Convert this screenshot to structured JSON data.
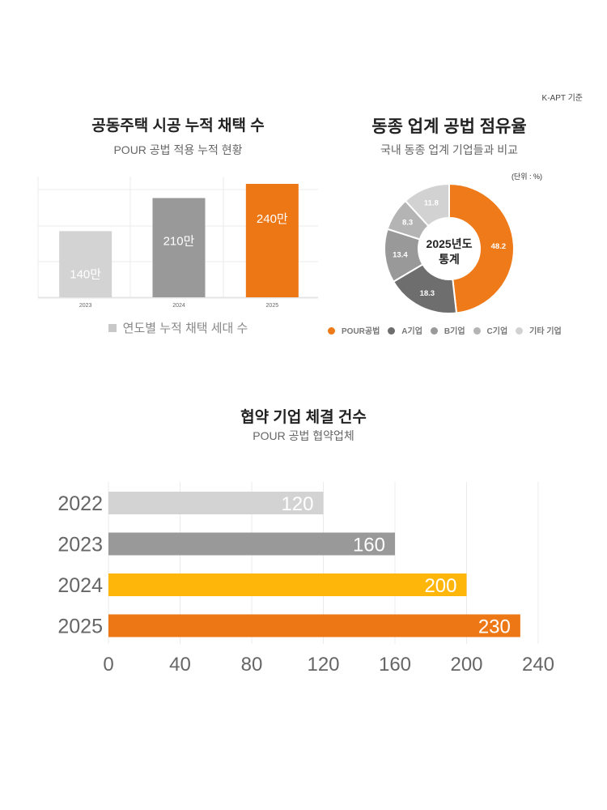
{
  "source_note": "K-APT 기준",
  "chart_data": [
    {
      "type": "bar",
      "title": "공동주택 시공 누적 채택 수",
      "subtitle": "POUR 공법 적용 누적 현황",
      "categories": [
        "2023",
        "2024",
        "2025"
      ],
      "values": [
        140,
        210,
        240
      ],
      "data_labels": [
        "140만",
        "210만",
        "240만"
      ],
      "colors": [
        "#d3d3d3",
        "#999999",
        "#ee7715"
      ],
      "legend": [
        {
          "label": "연도별 누적 채택 세대 수",
          "color": "#c8c8c8"
        }
      ],
      "legend_position": "bottom",
      "unit": "만 세대",
      "ylim": [
        0,
        255
      ],
      "grid": true
    },
    {
      "type": "pie",
      "title": "동종 업계 공법 점유율",
      "subtitle": "국내 동종 업계 기업들과 비교",
      "unit_label": "(단위 : %)",
      "center_label": [
        "2025년도",
        "통계"
      ],
      "slices": [
        {
          "label": "POUR공법",
          "value": 48.2,
          "color": "#ee7a1a"
        },
        {
          "label": "A기업",
          "value": 18.3,
          "color": "#6e6e6e"
        },
        {
          "label": "B기업",
          "value": 13.4,
          "color": "#999999"
        },
        {
          "label": "C기업",
          "value": 8.3,
          "color": "#b4b4b4"
        },
        {
          "label": "기타 기업",
          "value": 11.8,
          "color": "#d2d2d2"
        }
      ],
      "legend_position": "bottom",
      "donut": true
    },
    {
      "type": "bar",
      "orientation": "horizontal",
      "title": "협약 기업 체결 건수",
      "subtitle": "POUR 공법 협약업체",
      "categories": [
        "2022",
        "2023",
        "2024",
        "2025"
      ],
      "values": [
        120,
        160,
        200,
        230
      ],
      "colors": [
        "#d3d3d3",
        "#999999",
        "#ffb60b",
        "#ee7715"
      ],
      "xticks": [
        "0",
        "40",
        "80",
        "120",
        "160",
        "200",
        "240"
      ],
      "xlim": [
        0,
        240
      ],
      "grid": true
    }
  ]
}
